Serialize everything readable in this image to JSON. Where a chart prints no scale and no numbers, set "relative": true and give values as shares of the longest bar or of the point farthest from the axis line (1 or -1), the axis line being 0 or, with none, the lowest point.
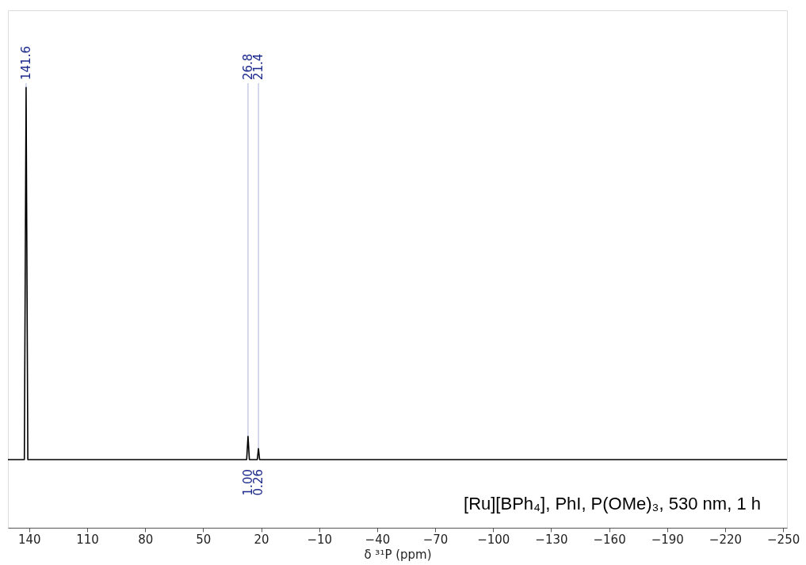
{
  "chart_data": {
    "type": "line",
    "relative": true,
    "xlabel": "δ ³¹P (ppm)",
    "xlim": [
      151,
      -252
    ],
    "xticks": [
      140,
      110,
      80,
      50,
      20,
      -10,
      -40,
      -70,
      -100,
      -130,
      -160,
      -190,
      -220,
      -250
    ],
    "grid": false,
    "marker": "none",
    "line_style": "solid",
    "series": [
      {
        "color": "#000000",
        "x": [
          151,
          142.5,
          141.6,
          140.7,
          27.5,
          26.8,
          26.1,
          22,
          21.4,
          20.8,
          -252
        ],
        "values": [
          0,
          0,
          1,
          0,
          0,
          0.063,
          0,
          0,
          0.03,
          0,
          0
        ]
      }
    ],
    "annotations": [
      {
        "text": "141.6",
        "x": 141.6,
        "y": 1
      },
      {
        "text": "26.8",
        "x": 26.8,
        "y": 0.063
      },
      {
        "text": "21.4",
        "x": 21.4,
        "y": 0.03
      },
      {
        "text": "1.00",
        "x": 26.8,
        "y": 0
      },
      {
        "text": "0.26",
        "x": 21.4,
        "y": 0
      },
      "[Ru][BPh₄], PhI, P(OMe)₃, 530 nm, 1 h"
    ]
  }
}
